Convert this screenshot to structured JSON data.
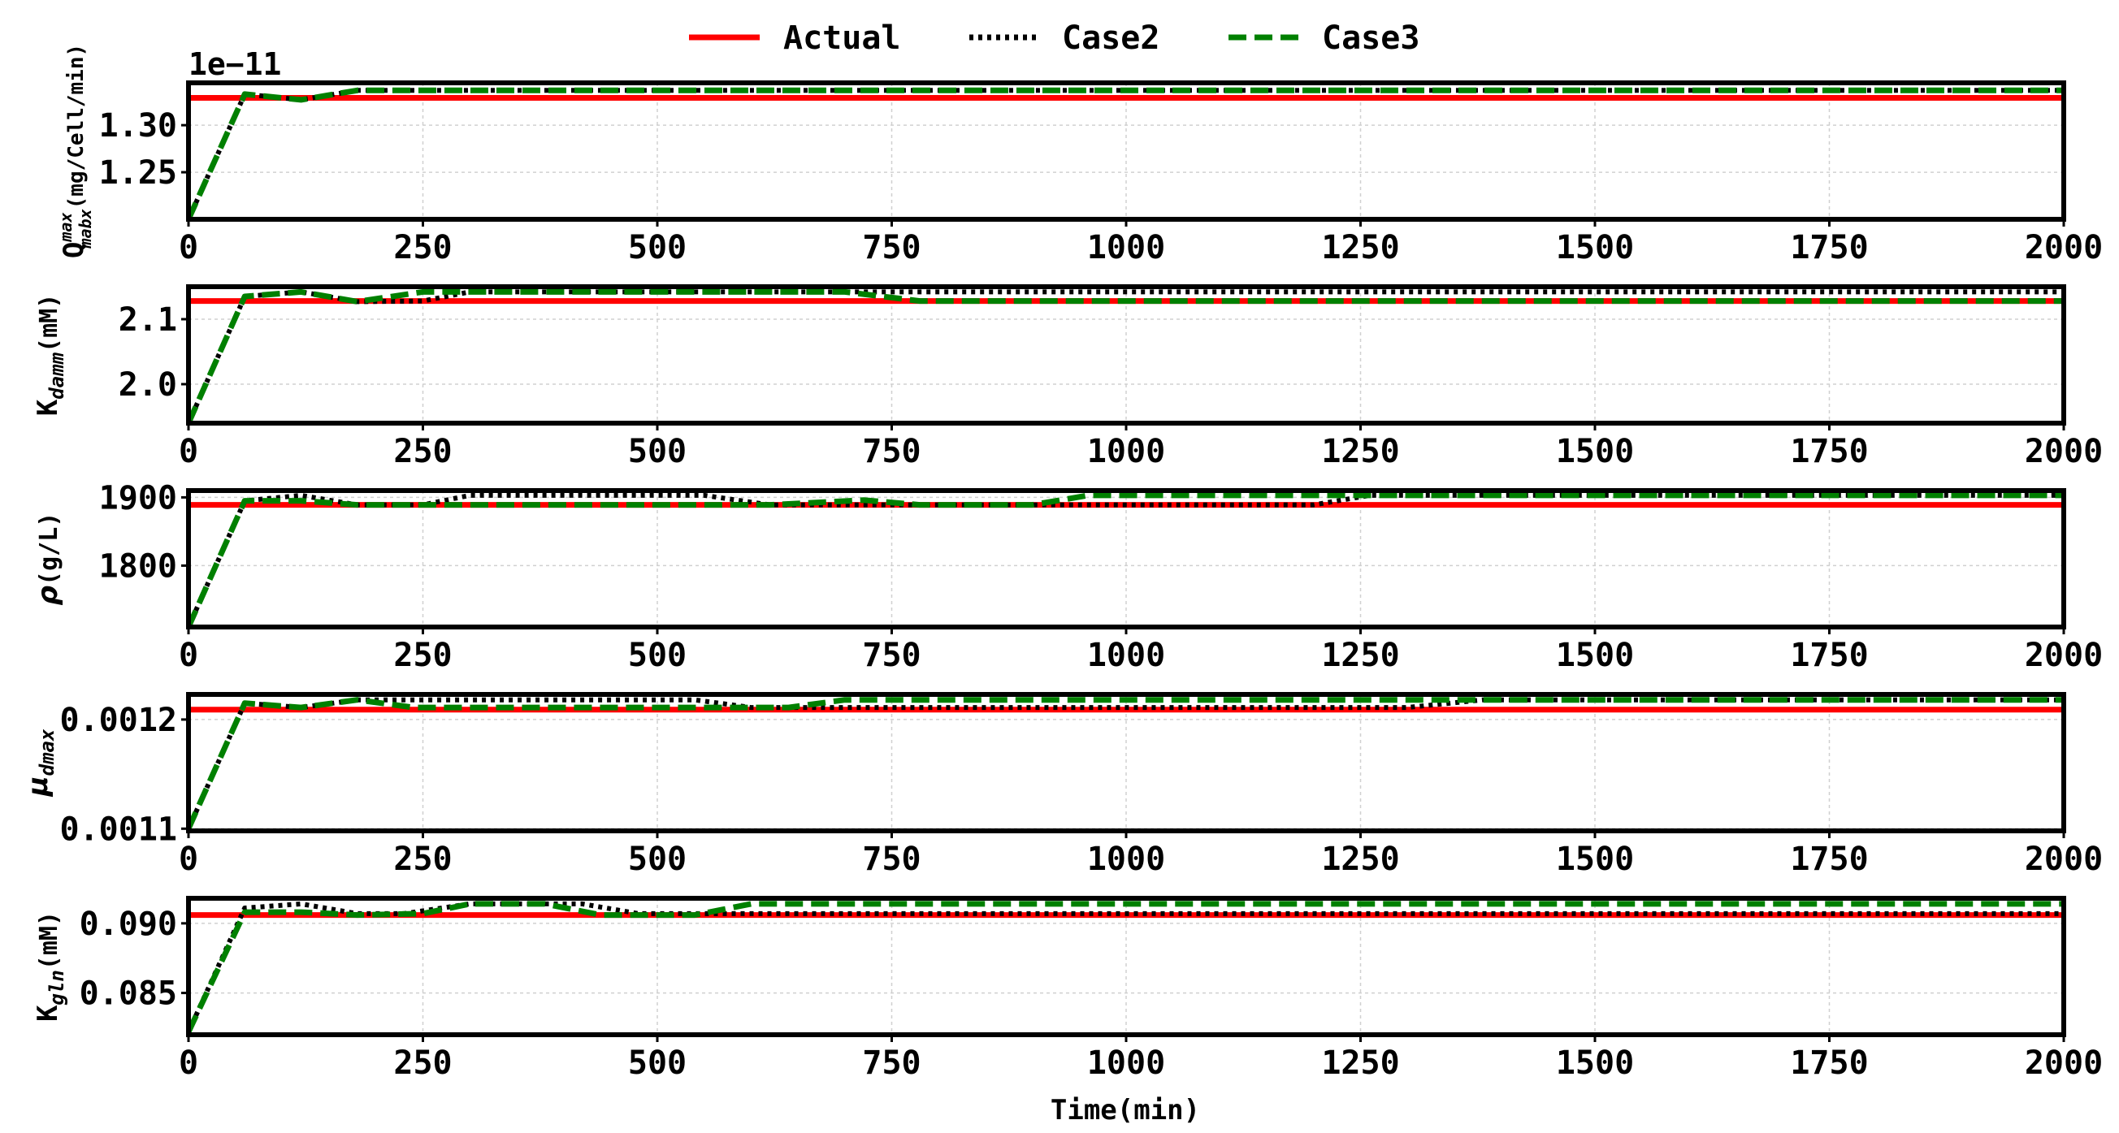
{
  "legend": {
    "entries": [
      {
        "label": "Actual",
        "style": "solid",
        "color": "#ff0000"
      },
      {
        "label": "Case2",
        "style": "dotted",
        "color": "#000000"
      },
      {
        "label": "Case3",
        "style": "dashed",
        "color": "#008000"
      }
    ]
  },
  "xlabel": "Time(min)",
  "chart_data": [
    {
      "type": "line",
      "ylabel": "Q^max_mabx (mg/Cell/min)",
      "ylabel_parts": {
        "main": "Q",
        "sup": "max",
        "sub": "mabx",
        "unit": "(mg/Cell/min)"
      },
      "offset_text": "1e−11",
      "xlim": [
        0,
        2000
      ],
      "ylim": [
        1.2,
        1.345
      ],
      "xticks": [
        0,
        250,
        500,
        750,
        1000,
        1250,
        1500,
        1750,
        2000
      ],
      "yticks": [
        1.25,
        1.3
      ],
      "ytick_labels": [
        "1.25",
        "1.30"
      ],
      "grid": true,
      "series": [
        {
          "name": "Actual",
          "x": [
            0,
            2000
          ],
          "y": [
            1.329,
            1.329
          ]
        },
        {
          "name": "Case2",
          "x": [
            0,
            60,
            120,
            180,
            2000
          ],
          "y": [
            1.2,
            1.333,
            1.327,
            1.337,
            1.337
          ]
        },
        {
          "name": "Case3",
          "x": [
            0,
            60,
            120,
            180,
            2000
          ],
          "y": [
            1.2,
            1.333,
            1.327,
            1.337,
            1.337
          ]
        }
      ]
    },
    {
      "type": "line",
      "ylabel": "K_damm (mM)",
      "ylabel_parts": {
        "main": "K",
        "sub": "damm",
        "unit": "(mM)"
      },
      "xlim": [
        0,
        2000
      ],
      "ylim": [
        1.94,
        2.15
      ],
      "xticks": [
        0,
        250,
        500,
        750,
        1000,
        1250,
        1500,
        1750,
        2000
      ],
      "yticks": [
        2.0,
        2.1
      ],
      "ytick_labels": [
        "2.0",
        "2.1"
      ],
      "grid": true,
      "series": [
        {
          "name": "Actual",
          "x": [
            0,
            2000
          ],
          "y": [
            2.128,
            2.128
          ]
        },
        {
          "name": "Case2",
          "x": [
            0,
            60,
            120,
            180,
            250,
            300,
            2000
          ],
          "y": [
            1.94,
            2.135,
            2.142,
            2.127,
            2.128,
            2.142,
            2.142
          ]
        },
        {
          "name": "Case3",
          "x": [
            0,
            60,
            120,
            180,
            250,
            700,
            780,
            2000
          ],
          "y": [
            1.94,
            2.135,
            2.142,
            2.127,
            2.142,
            2.142,
            2.128,
            2.128
          ]
        }
      ]
    },
    {
      "type": "line",
      "ylabel": "ρ(g/L)",
      "ylabel_parts": {
        "main": "ρ",
        "unit": "(g/L)"
      },
      "xlim": [
        0,
        2000
      ],
      "ylim": [
        1710,
        1910
      ],
      "xticks": [
        0,
        250,
        500,
        750,
        1000,
        1250,
        1500,
        1750,
        2000
      ],
      "yticks": [
        1800,
        1900
      ],
      "ytick_labels": [
        "1800",
        "1900"
      ],
      "grid": true,
      "series": [
        {
          "name": "Actual",
          "x": [
            0,
            2000
          ],
          "y": [
            1889,
            1889
          ]
        },
        {
          "name": "Case2",
          "x": [
            0,
            60,
            120,
            180,
            250,
            300,
            550,
            620,
            1200,
            1260,
            2000
          ],
          "y": [
            1710,
            1895,
            1903,
            1889,
            1889,
            1903,
            1903,
            1889,
            1889,
            1903,
            1903
          ]
        },
        {
          "name": "Case3",
          "x": [
            0,
            60,
            120,
            180,
            620,
            720,
            780,
            900,
            960,
            2000
          ],
          "y": [
            1710,
            1895,
            1895,
            1889,
            1889,
            1896,
            1889,
            1889,
            1903,
            1903
          ]
        }
      ]
    },
    {
      "type": "line",
      "ylabel": "μ_dmax",
      "ylabel_parts": {
        "main": "μ",
        "sub": "dmax",
        "unit": ""
      },
      "xlim": [
        0,
        2000
      ],
      "ylim": [
        0.001098,
        0.001223
      ],
      "xticks": [
        0,
        250,
        500,
        750,
        1000,
        1250,
        1500,
        1750,
        2000
      ],
      "yticks": [
        0.0011,
        0.0012
      ],
      "ytick_labels": [
        "0.0011",
        "0.0012"
      ],
      "grid": true,
      "series": [
        {
          "name": "Actual",
          "x": [
            0,
            2000
          ],
          "y": [
            0.001209,
            0.001209
          ]
        },
        {
          "name": "Case2",
          "x": [
            0,
            60,
            120,
            180,
            540,
            600,
            1300,
            1380,
            2000
          ],
          "y": [
            0.0011,
            0.001215,
            0.001211,
            0.001218,
            0.001218,
            0.001211,
            0.001211,
            0.001218,
            0.001218
          ]
        },
        {
          "name": "Case3",
          "x": [
            0,
            60,
            120,
            180,
            240,
            640,
            700,
            2000
          ],
          "y": [
            0.0011,
            0.001215,
            0.001211,
            0.001218,
            0.001211,
            0.001211,
            0.001218,
            0.001218
          ]
        }
      ]
    },
    {
      "type": "line",
      "ylabel": "K_gln (mM)",
      "ylabel_parts": {
        "main": "K",
        "sub": "gln",
        "unit": "(mM)"
      },
      "xlim": [
        0,
        2000
      ],
      "ylim": [
        0.082,
        0.0918
      ],
      "xticks": [
        0,
        250,
        500,
        750,
        1000,
        1250,
        1500,
        1750,
        2000
      ],
      "yticks": [
        0.085,
        0.09
      ],
      "ytick_labels": [
        "0.085",
        "0.090"
      ],
      "grid": true,
      "series": [
        {
          "name": "Actual",
          "x": [
            0,
            2000
          ],
          "y": [
            0.0906,
            0.0906
          ]
        },
        {
          "name": "Case2",
          "x": [
            0,
            60,
            120,
            180,
            230,
            300,
            420,
            480,
            2000
          ],
          "y": [
            0.0822,
            0.0911,
            0.0914,
            0.0907,
            0.0907,
            0.0914,
            0.0914,
            0.0907,
            0.0907
          ]
        },
        {
          "name": "Case3",
          "x": [
            0,
            60,
            120,
            180,
            250,
            300,
            380,
            440,
            540,
            600,
            2000
          ],
          "y": [
            0.0822,
            0.0908,
            0.0908,
            0.0906,
            0.0907,
            0.0914,
            0.0914,
            0.0906,
            0.0906,
            0.0914,
            0.0914
          ]
        }
      ]
    }
  ]
}
